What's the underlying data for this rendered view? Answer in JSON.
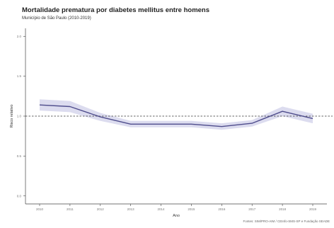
{
  "title": "Mortalidade prematura por diabetes mellitus entre homens",
  "subtitle": "Município de São Paulo (2010-2019)",
  "caption": "Fontes: SIM/PRO-AIM / CEInfo-SMS-SP e Fundação SEADE",
  "chart_data": {
    "type": "line",
    "title": "Mortalidade prematura por diabetes mellitus entre homens",
    "subtitle": "Município de São Paulo (2010-2019)",
    "xlabel": "Ano",
    "ylabel": "Risco relativo",
    "x": [
      2010,
      2011,
      2012,
      2013,
      2014,
      2015,
      2016,
      2017,
      2018,
      2019
    ],
    "x_tick_labels": [
      "2010",
      "2011",
      "2012",
      "2013",
      "2014",
      "2015",
      "2016",
      "2017",
      "2018",
      "2019"
    ],
    "y_ticks": [
      0.0,
      0.5,
      1.0,
      1.5,
      2.0
    ],
    "y_tick_labels": [
      "0.0",
      "0.5",
      "1.0",
      "1.5",
      "2.0"
    ],
    "ylim": [
      -0.1,
      2.1
    ],
    "reference_line": 1.0,
    "series": [
      {
        "values": [
          1.14,
          1.12,
          0.99,
          0.9,
          0.9,
          0.9,
          0.87,
          0.91,
          1.06,
          0.97
        ],
        "lower": [
          1.07,
          1.05,
          0.94,
          0.86,
          0.86,
          0.86,
          0.83,
          0.87,
          1.0,
          0.91
        ],
        "upper": [
          1.21,
          1.19,
          1.04,
          0.94,
          0.94,
          0.94,
          0.91,
          0.95,
          1.12,
          1.03
        ]
      }
    ],
    "colors": {
      "line": "#4f4d8c",
      "band": "#dcdcef",
      "reference": "#333333",
      "axis": "#444444"
    },
    "grid": false,
    "legend": "none"
  }
}
